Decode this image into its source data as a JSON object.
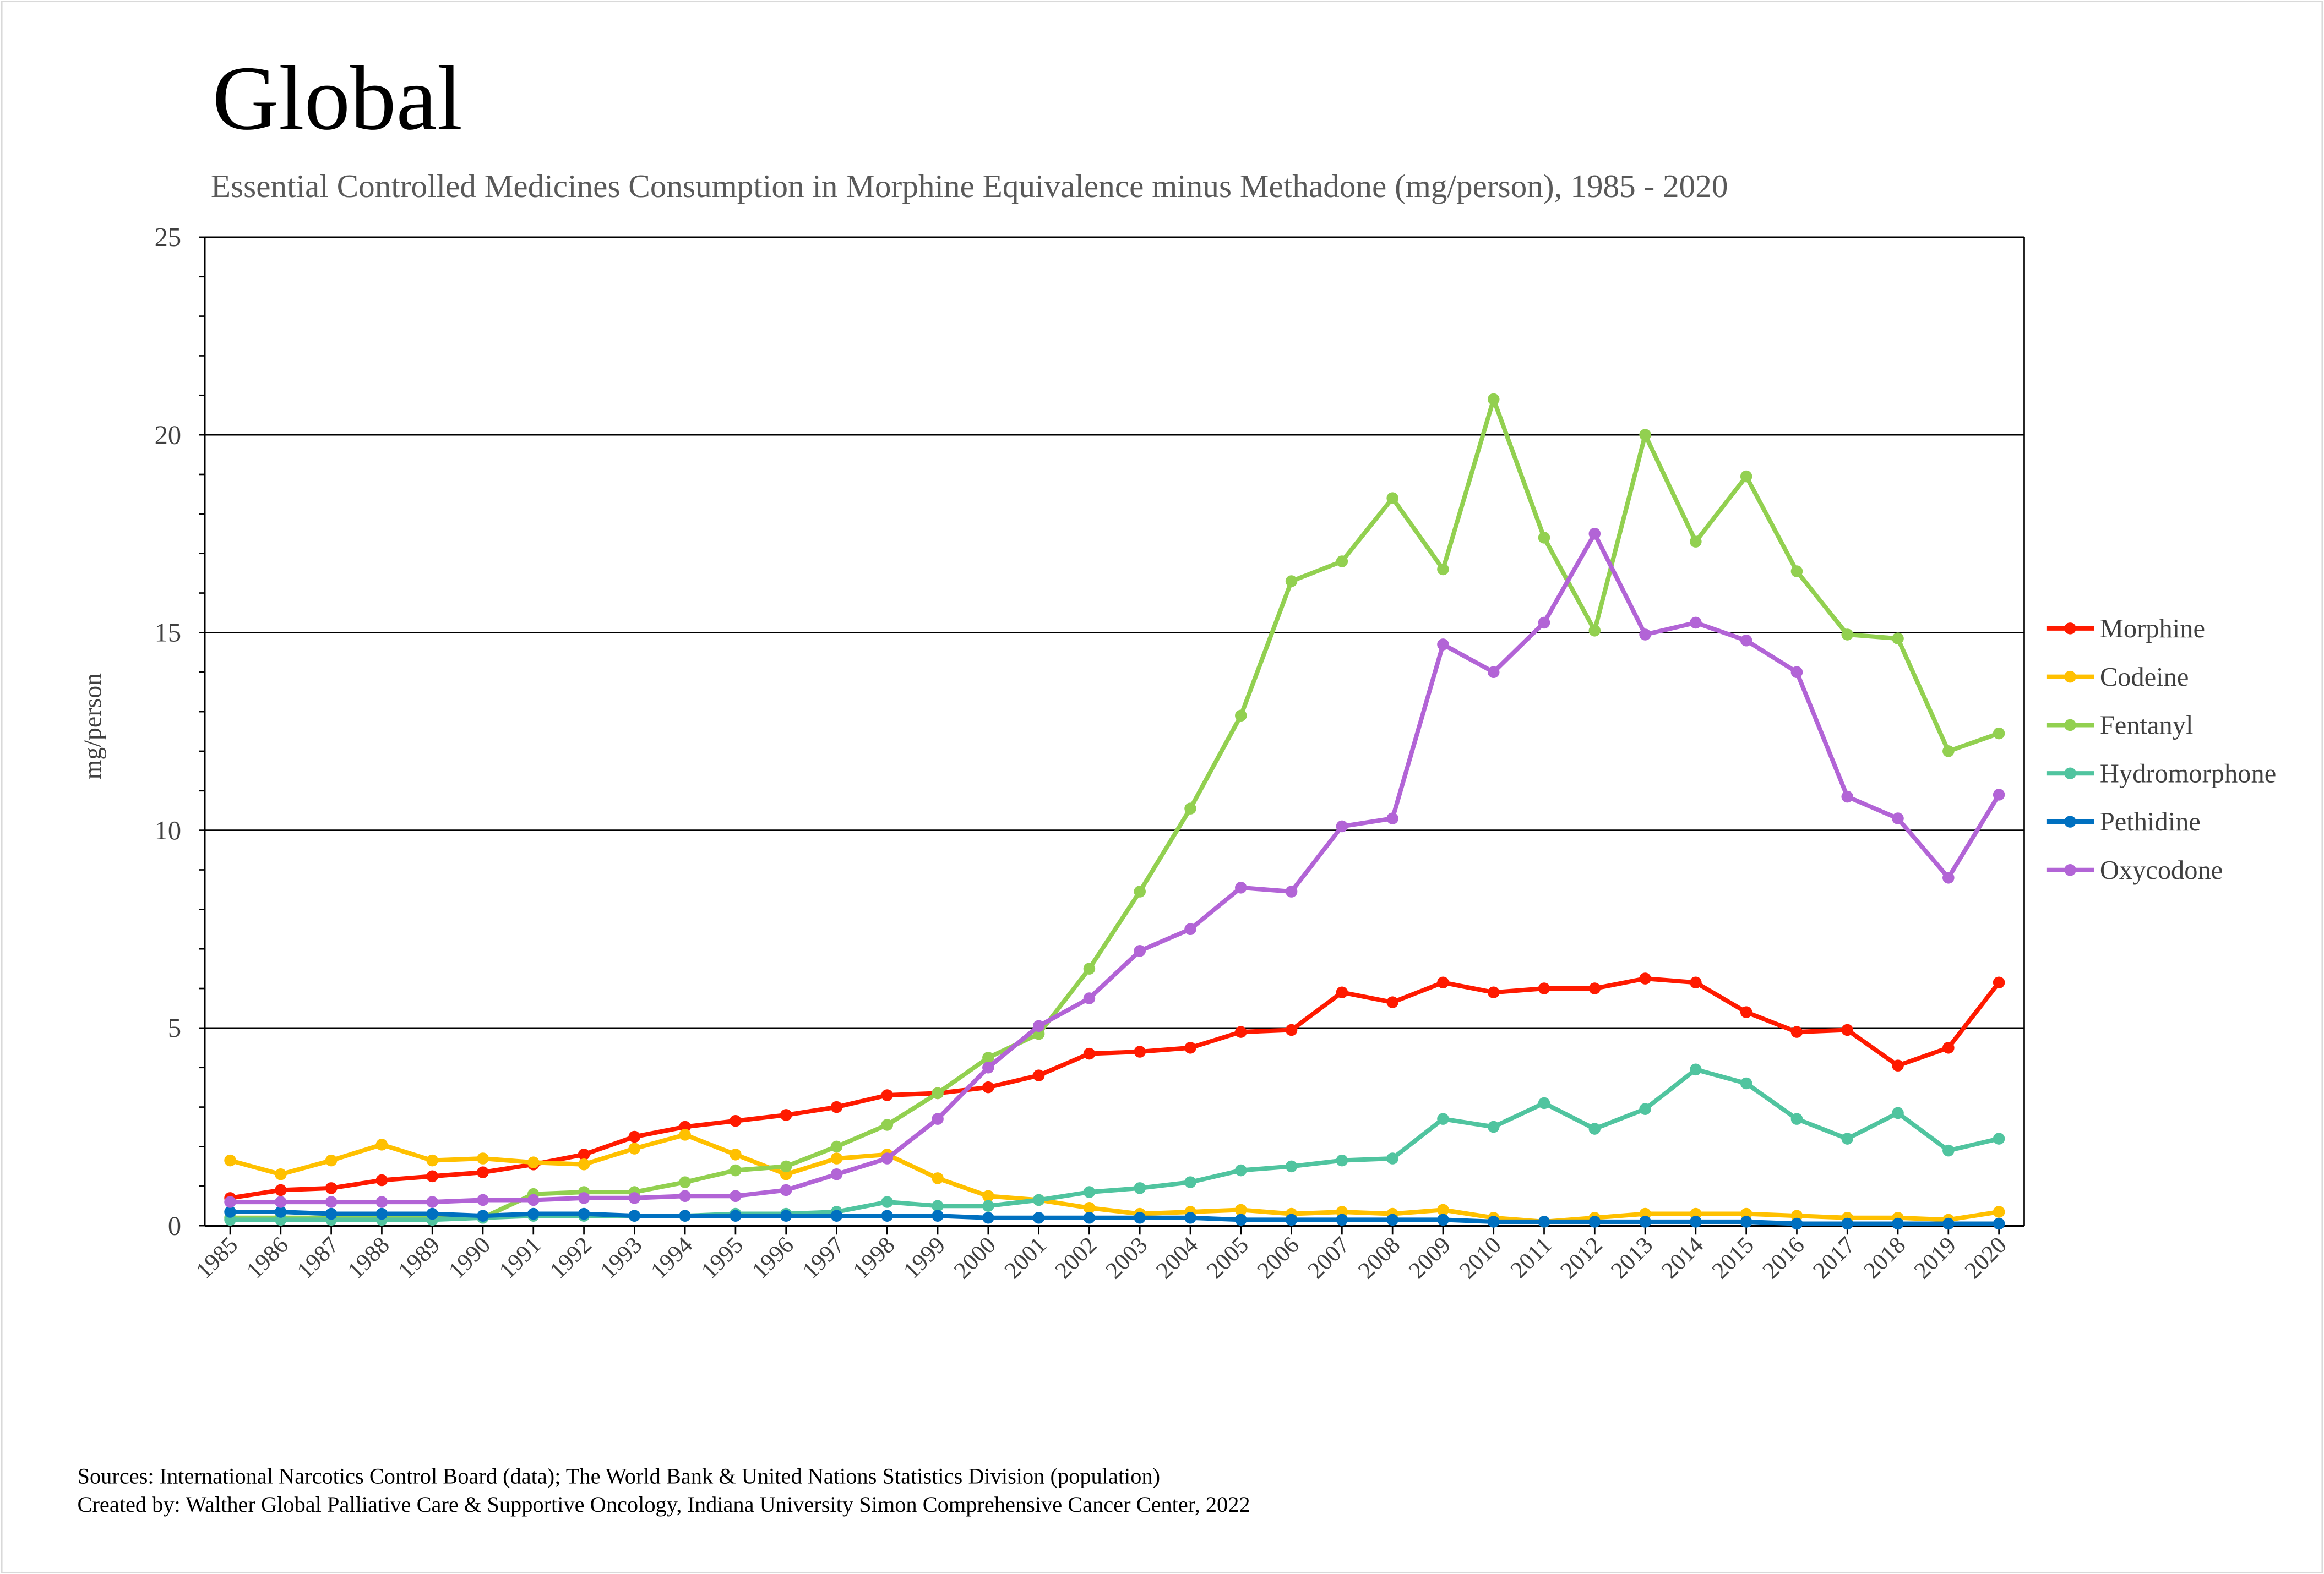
{
  "title": "Global",
  "subtitle": "Essential Controlled Medicines Consumption in Morphine Equivalence minus Methadone (mg/person), 1985 - 2020",
  "footer": {
    "sources": "Sources: International Narcotics Control Board (data); The World Bank & United Nations Statistics Division (population)",
    "created_by": "Created by: Walther Global Palliative Care & Supportive Oncology, Indiana University Simon Comprehensive Cancer Center, 2022"
  },
  "chart_data": {
    "type": "line",
    "title": "Global",
    "subtitle": "Essential Controlled Medicines Consumption in Morphine Equivalence minus Methadone (mg/person), 1985 - 2020",
    "xlabel": "",
    "ylabel": "mg/person",
    "ylim": [
      0,
      25
    ],
    "yticks": [
      "0",
      "5",
      "10",
      "15",
      "20",
      "25"
    ],
    "grid": "horizontal major gridlines",
    "legend": "right",
    "categories": [
      "1985",
      "1986",
      "1987",
      "1988",
      "1989",
      "1990",
      "1991",
      "1992",
      "1993",
      "1994",
      "1995",
      "1996",
      "1997",
      "1998",
      "1999",
      "2000",
      "2001",
      "2002",
      "2003",
      "2004",
      "2005",
      "2006",
      "2007",
      "2008",
      "2009",
      "2010",
      "2011",
      "2012",
      "2013",
      "2014",
      "2015",
      "2016",
      "2017",
      "2018",
      "2019",
      "2020"
    ],
    "series": [
      {
        "name": "Morphine",
        "color": "#ff1a00",
        "values": [
          0.7,
          0.9,
          0.95,
          1.15,
          1.25,
          1.35,
          1.55,
          1.8,
          2.25,
          2.5,
          2.65,
          2.8,
          3.0,
          3.3,
          3.35,
          3.5,
          3.8,
          4.35,
          4.4,
          4.5,
          4.9,
          4.95,
          5.9,
          5.65,
          6.15,
          5.9,
          6.0,
          6.0,
          6.25,
          6.15,
          5.4,
          4.9,
          4.95,
          4.05,
          4.5,
          6.15
        ]
      },
      {
        "name": "Codeine",
        "color": "#ffc000",
        "values": [
          1.65,
          1.3,
          1.65,
          2.05,
          1.65,
          1.7,
          1.6,
          1.55,
          1.95,
          2.3,
          1.8,
          1.3,
          1.7,
          1.8,
          1.2,
          0.75,
          0.65,
          0.45,
          0.3,
          0.35,
          0.4,
          0.3,
          0.35,
          0.3,
          0.4,
          0.2,
          0.1,
          0.2,
          0.3,
          0.3,
          0.3,
          0.25,
          0.2,
          0.2,
          0.15,
          0.35
        ]
      },
      {
        "name": "Fentanyl",
        "color": "#92d050",
        "values": [
          0.2,
          0.2,
          0.2,
          0.2,
          0.2,
          0.2,
          0.8,
          0.85,
          0.85,
          1.1,
          1.4,
          1.5,
          2.0,
          2.55,
          3.35,
          4.25,
          4.85,
          6.5,
          8.45,
          10.55,
          12.9,
          16.3,
          16.8,
          18.4,
          16.6,
          20.9,
          17.4,
          15.05,
          20.0,
          17.3,
          18.95,
          16.55,
          14.95,
          14.85,
          12.0,
          12.45
        ]
      },
      {
        "name": "Hydromorphone",
        "color": "#50c49f",
        "values": [
          0.15,
          0.15,
          0.15,
          0.15,
          0.15,
          0.2,
          0.25,
          0.25,
          0.25,
          0.25,
          0.3,
          0.3,
          0.35,
          0.6,
          0.5,
          0.5,
          0.65,
          0.85,
          0.95,
          1.1,
          1.4,
          1.5,
          1.65,
          1.7,
          2.7,
          2.5,
          3.1,
          2.45,
          2.95,
          3.95,
          3.6,
          2.7,
          2.2,
          2.85,
          1.9,
          2.2
        ]
      },
      {
        "name": "Pethidine",
        "color": "#0070c0",
        "values": [
          0.35,
          0.35,
          0.3,
          0.3,
          0.3,
          0.25,
          0.3,
          0.3,
          0.25,
          0.25,
          0.25,
          0.25,
          0.25,
          0.25,
          0.25,
          0.2,
          0.2,
          0.2,
          0.2,
          0.2,
          0.15,
          0.15,
          0.15,
          0.15,
          0.15,
          0.1,
          0.1,
          0.1,
          0.1,
          0.1,
          0.1,
          0.05,
          0.05,
          0.05,
          0.05,
          0.05
        ]
      },
      {
        "name": "Oxycodone",
        "color": "#b264d6",
        "values": [
          0.6,
          0.6,
          0.6,
          0.6,
          0.6,
          0.65,
          0.65,
          0.7,
          0.7,
          0.75,
          0.75,
          0.9,
          1.3,
          1.7,
          2.7,
          4.0,
          5.05,
          5.75,
          6.95,
          7.5,
          8.55,
          8.45,
          10.1,
          10.3,
          14.7,
          14.0,
          15.25,
          17.5,
          14.95,
          15.25,
          14.8,
          14.0,
          10.85,
          10.3,
          8.8,
          10.9
        ]
      }
    ]
  }
}
